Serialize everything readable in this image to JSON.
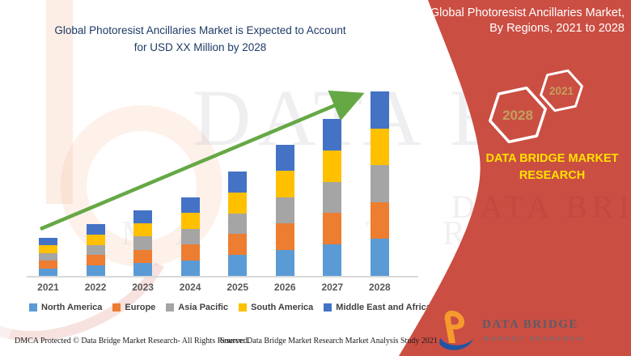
{
  "title": {
    "line1": "Global Photoresist Ancillaries Market is Expected to Account",
    "line2": "for USD XX Million by 2028"
  },
  "panel": {
    "header_line1": "Global Photoresist Ancillaries Market,",
    "header_line2": "By Regions, 2021 to 2028",
    "hex_large": "2028",
    "hex_small": "2021",
    "brand_line1": "DATA BRIDGE MARKET",
    "brand_line2": "RESEARCH"
  },
  "logo": {
    "wordmark": "DATA BRIDGE",
    "subtitle": "MARKET RESEARCH"
  },
  "footer": {
    "left": "DMCA Protected © Data Bridge Market Research- All Rights Reserved.",
    "right": "Source: Data Bridge Market Research Market Analysis Study 2021"
  },
  "watermark": {
    "line1": "DATA B",
    "line2": "MARKET RE",
    "panel_text": "DATA BRI"
  },
  "colors": {
    "panel_red": "#CB4E43",
    "arrow_green": "#65A844",
    "title_navy": "#1E3A66",
    "brand_yellow": "#FFE100",
    "hex_gold": "#C2A15D",
    "axis_gray": "#D9D9D9",
    "label_gray": "#595959",
    "north_america": "#5B9BD5",
    "europe": "#ED7D31",
    "asia_pacific": "#A5A5A5",
    "south_america": "#FFC000",
    "middle_east_africa": "#4472C4"
  },
  "chart_data": {
    "type": "bar",
    "stacked": true,
    "title": "Global Photoresist Ancillaries Market is Expected to Account for USD XX Million by 2028",
    "xlabel": "",
    "ylabel": "",
    "grid": false,
    "value_axis_visible": false,
    "values_note": "Value axis is not shown (USD XX Million); series values are relative units estimated from bar heights, five roughly equal regional segments per year",
    "legend_position": "bottom",
    "trend_arrow": true,
    "categories": [
      "2021",
      "2022",
      "2023",
      "2024",
      "2025",
      "2026",
      "2027",
      "2028"
    ],
    "totals_relative": [
      47,
      64,
      81,
      97,
      129,
      162,
      194,
      228
    ],
    "ylim": [
      0,
      240
    ],
    "series": [
      {
        "name": "North America",
        "color": "#5B9BD5",
        "values": [
          9.4,
          12.8,
          16.2,
          19.4,
          25.8,
          32.4,
          38.8,
          45.6
        ]
      },
      {
        "name": "Europe",
        "color": "#ED7D31",
        "values": [
          9.4,
          12.8,
          16.2,
          19.4,
          25.8,
          32.4,
          38.8,
          45.6
        ]
      },
      {
        "name": "Asia Pacific",
        "color": "#A5A5A5",
        "values": [
          9.4,
          12.8,
          16.2,
          19.4,
          25.8,
          32.4,
          38.8,
          45.6
        ]
      },
      {
        "name": "South America",
        "color": "#FFC000",
        "values": [
          9.4,
          12.8,
          16.2,
          19.4,
          25.8,
          32.4,
          38.8,
          45.6
        ]
      },
      {
        "name": "Middle East and Africa",
        "color": "#4472C4",
        "values": [
          9.4,
          12.8,
          16.2,
          19.4,
          25.8,
          32.4,
          38.8,
          45.6
        ]
      }
    ]
  }
}
